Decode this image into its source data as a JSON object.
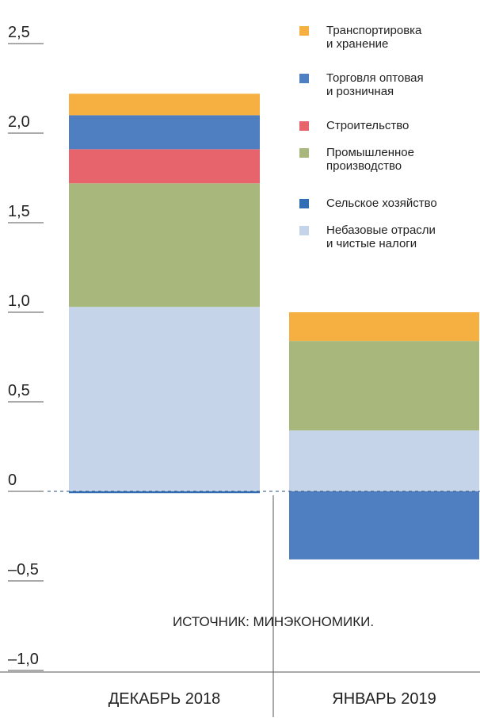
{
  "chart_data": {
    "type": "stacked_bar",
    "categories": [
      "ДЕКАБРЬ 2018",
      "ЯНВАРЬ 2019"
    ],
    "series": [
      {
        "name": "Сельское хозяйство",
        "color": "#2f6db4",
        "values": [
          -0.01,
          0
        ]
      },
      {
        "name": "Небазовые отрасли\nи чистые налоги",
        "color": "#c5d4e8",
        "values": [
          1.03,
          0.34
        ]
      },
      {
        "name": "Промышленное\nпроизводство",
        "color": "#a8b87c",
        "values": [
          0.69,
          0.5
        ]
      },
      {
        "name": "Строительство",
        "color": "#e8646c",
        "values": [
          0.19,
          0
        ]
      },
      {
        "name": "Торговля оптовая\nи розничная",
        "color": "#4f7fc0",
        "values": [
          0.19,
          -0.38
        ]
      },
      {
        "name": "Транспортировка\nи хранение",
        "color": "#f5b041",
        "values": [
          0.12,
          0.16
        ]
      }
    ],
    "legend_order": [
      5,
      4,
      3,
      2,
      0,
      1
    ],
    "annotation": "ИСТОЧНИК: МИНЭКОНОМИКИ.",
    "ylim": [
      -1.0,
      2.5
    ],
    "yticks": [
      {
        "value": -1.0,
        "label": "–1,0"
      },
      {
        "value": -0.5,
        "label": "–0,5"
      },
      0,
      {
        "value": 0.5,
        "label": "0,5"
      },
      {
        "value": 1.0,
        "label": "1,0"
      },
      {
        "value": 1.5,
        "label": "1,5"
      },
      {
        "value": 2.0,
        "label": "2,0"
      },
      {
        "value": 2.5,
        "label": "2,5"
      }
    ]
  }
}
